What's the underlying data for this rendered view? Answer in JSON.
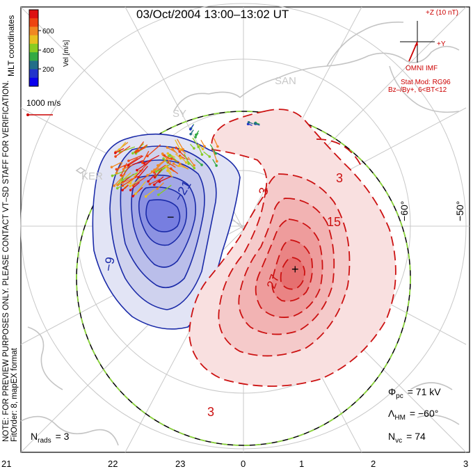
{
  "title": "03/Oct/2004 13:00–13:02 UT",
  "vertical_notes": {
    "coords": "MLT coordinates",
    "preview": "NOTE: FOR PREVIEW PURPOSES ONLY. PLEASE CONTACT VT–SD STAFF FOR VERIFICATION.",
    "fitorder": "FitOrder: 8, mapEX format"
  },
  "velocity_scale": {
    "label": "Vel [m/s]",
    "ticks": [
      "600",
      "400",
      "200"
    ],
    "colors": [
      "#dd1111",
      "#ee4411",
      "#f08822",
      "#e8c020",
      "#88cc22",
      "#33aa44",
      "#226e88",
      "#2233cc",
      "#0a00ee"
    ]
  },
  "vector_key": {
    "label": "1000 m/s",
    "color": "#cc0000"
  },
  "imf": {
    "z_label": "+Z (10 nT)",
    "y_label": "+Y",
    "source": "OMNI IMF",
    "model": "Stat Mod: RG96",
    "bin": "Bz–/By+, 6<BT<12",
    "color": "#cc0000"
  },
  "geo_labels": {
    "san": "SAN",
    "ker": "KER",
    "sy": "SY"
  },
  "latitude_labels": {
    "inner": "−60°",
    "outer": "−50°"
  },
  "contour_labels": {
    "neg": [
      "−9",
      "−21"
    ],
    "pos": [
      "3",
      "3",
      "3",
      "15",
      "27",
      "3"
    ],
    "min_marker": "−",
    "max_marker": "+"
  },
  "stats": {
    "phi_pc": {
      "symbol": "Φ",
      "sub": "pc",
      "value": "= 71 kV"
    },
    "lambda_hm": {
      "symbol": "Λ",
      "sub": "HM",
      "value": "= −60°"
    },
    "n_vc": {
      "symbol": "N",
      "sub": "vc",
      "value": "= 74"
    },
    "n_rads": {
      "symbol": "N",
      "sub": "rads",
      "value": "= 3"
    }
  },
  "mlt_ticks": [
    "21",
    "22",
    "23",
    "0",
    "1",
    "2",
    "3"
  ],
  "colors": {
    "negative_line": "#1a2aa8",
    "positive_line": "#cc1111",
    "boundary_green": "#8ad43a",
    "grid": "#c8c8c8"
  }
}
